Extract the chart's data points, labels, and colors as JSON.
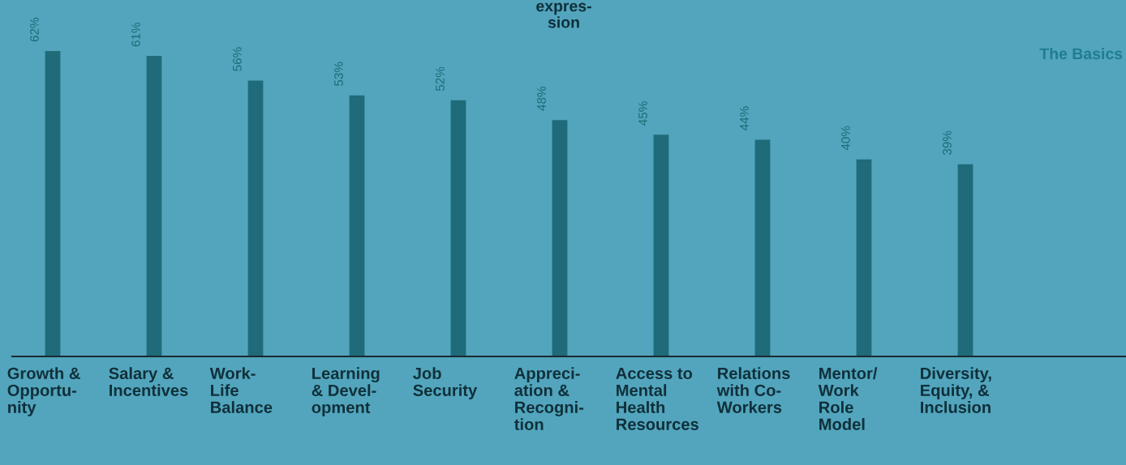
{
  "chart_data": {
    "type": "bar",
    "categories": [
      "Growth &\nOpportu-\nnity",
      "Salary &\nIncentives",
      "Work-\nLife\nBalance",
      "Learning\n& Devel-\nopment",
      "Job\nSecurity",
      "Appreci-\nation &\nRecogni-\ntion",
      "Access to\nMental\nHealth\nResources",
      "Relations\nwith Co-\nWorkers",
      "Mentor/\nWork\nRole\nModel",
      "Diversity,\nEquity, &\nInclusion"
    ],
    "values": [
      62,
      61,
      56,
      53,
      52,
      48,
      45,
      44,
      40,
      39
    ],
    "color": "#1f6b79",
    "data_labels": true,
    "value_labels": [
      "62%",
      "61%",
      "56%",
      "53%",
      "52%",
      "48%",
      "45%",
      "44%",
      "40%",
      "39%"
    ],
    "annotations": [
      "expres-\nsion",
      "The Basics"
    ]
  }
}
